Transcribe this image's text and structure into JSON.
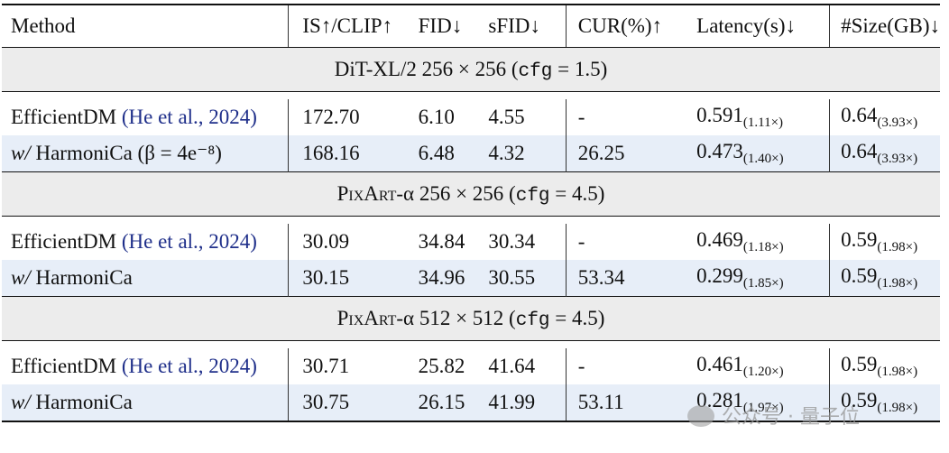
{
  "headers": [
    "Method",
    "IS↑/CLIP↑",
    "FID↓",
    "sFID↓",
    "CUR(%)↑",
    "Latency(s)↓",
    "#Size(GB)↓"
  ],
  "sections": [
    {
      "title_prefix": "DiT-XL/2 256 × 256 (",
      "cfg_label": "cfg",
      "title_suffix": " = 1.5)",
      "rows": [
        {
          "method": "EfficientDM",
          "citation": "He et al., 2024",
          "is": "172.70",
          "fid": "6.10",
          "sfid": "4.55",
          "cur": "-",
          "latency": "0.591",
          "latency_x": "(1.11×)",
          "size": "0.64",
          "size_x": "(3.93×)"
        },
        {
          "method_prefix": "w/",
          "method": "HarmoniCa",
          "param": "(β = 4e⁻⁸)",
          "is": "168.16",
          "fid": "6.48",
          "sfid": "4.32",
          "cur": "26.25",
          "latency": "0.473",
          "latency_x": "(1.40×)",
          "size": "0.64",
          "size_x": "(3.93×)"
        }
      ]
    },
    {
      "title_prefix": "P",
      "title_sc": "ix",
      "title_mid": "A",
      "title_sc2": "rt",
      "title_rest": "-α 256 × 256 (",
      "cfg_label": "cfg",
      "title_suffix": " = 4.5)",
      "rows": [
        {
          "method": "EfficientDM",
          "citation": "He et al., 2024",
          "is": "30.09",
          "fid": "34.84",
          "sfid": "30.34",
          "cur": "-",
          "latency": "0.469",
          "latency_x": "(1.18×)",
          "size": "0.59",
          "size_x": "(1.98×)"
        },
        {
          "method_prefix": "w/",
          "method": "HarmoniCa",
          "is": "30.15",
          "fid": "34.96",
          "sfid": "30.55",
          "cur": "53.34",
          "latency": "0.299",
          "latency_x": "(1.85×)",
          "size": "0.59",
          "size_x": "(1.98×)"
        }
      ]
    },
    {
      "title_prefix": "P",
      "title_sc": "ix",
      "title_mid": "A",
      "title_sc2": "rt",
      "title_rest": "-α 512 × 512 (",
      "cfg_label": "cfg",
      "title_suffix": " = 4.5)",
      "rows": [
        {
          "method": "EfficientDM",
          "citation": "He et al., 2024",
          "is": "30.71",
          "fid": "25.82",
          "sfid": "41.64",
          "cur": "-",
          "latency": "0.461",
          "latency_x": "(1.20×)",
          "size": "0.59",
          "size_x": "(1.98×)"
        },
        {
          "method_prefix": "w/",
          "method": "HarmoniCa",
          "is": "30.75",
          "fid": "26.15",
          "sfid": "41.99",
          "cur": "53.11",
          "latency": "0.281",
          "latency_x": "(1.97×)",
          "size": "0.59",
          "size_x": "(1.98×)"
        }
      ]
    }
  ],
  "watermark": "公众号 · 量子位",
  "colors": {
    "highlight_row": "#e7eef8",
    "section_bg": "#ececec",
    "citation": "#1f2f8a"
  }
}
